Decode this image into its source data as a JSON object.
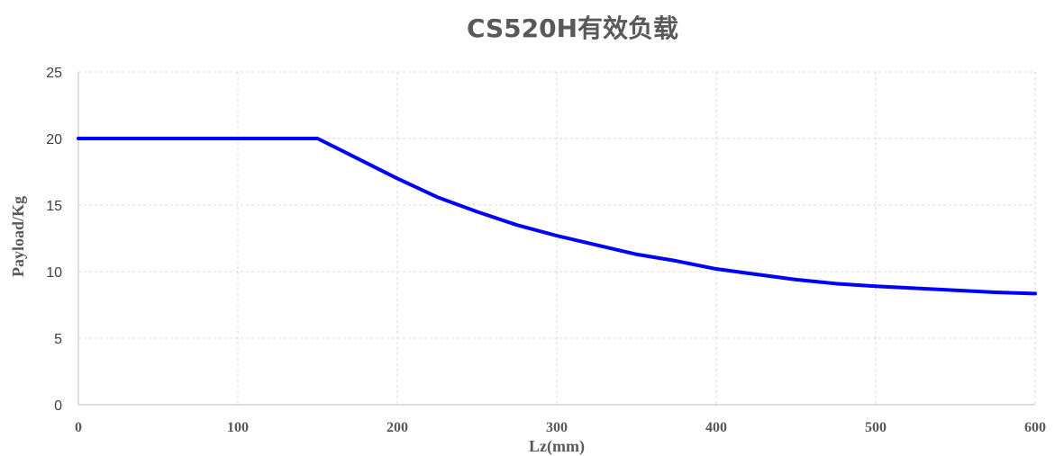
{
  "chart_data": {
    "type": "line",
    "title": "CS520H有效负载",
    "xlabel": "Lz(mm)",
    "ylabel": "Payload/Kg",
    "xlim": [
      0,
      600
    ],
    "ylim": [
      0,
      25
    ],
    "x_ticks": [
      "0",
      "100",
      "200",
      "300",
      "400",
      "500",
      "600"
    ],
    "y_ticks": [
      "0",
      "5",
      "10",
      "15",
      "20",
      "25"
    ],
    "grid": true,
    "series": [
      {
        "color": "#0000ff",
        "x": [
          0,
          50,
          100,
          150,
          175,
          200,
          225,
          250,
          275,
          300,
          325,
          350,
          375,
          400,
          425,
          450,
          475,
          500,
          525,
          550,
          575,
          600
        ],
        "y": [
          20,
          20,
          20,
          20,
          18.5,
          17.0,
          15.6,
          14.5,
          13.5,
          12.7,
          12.0,
          11.3,
          10.8,
          10.2,
          9.8,
          9.4,
          9.1,
          8.9,
          8.75,
          8.6,
          8.45,
          8.35
        ]
      }
    ]
  }
}
